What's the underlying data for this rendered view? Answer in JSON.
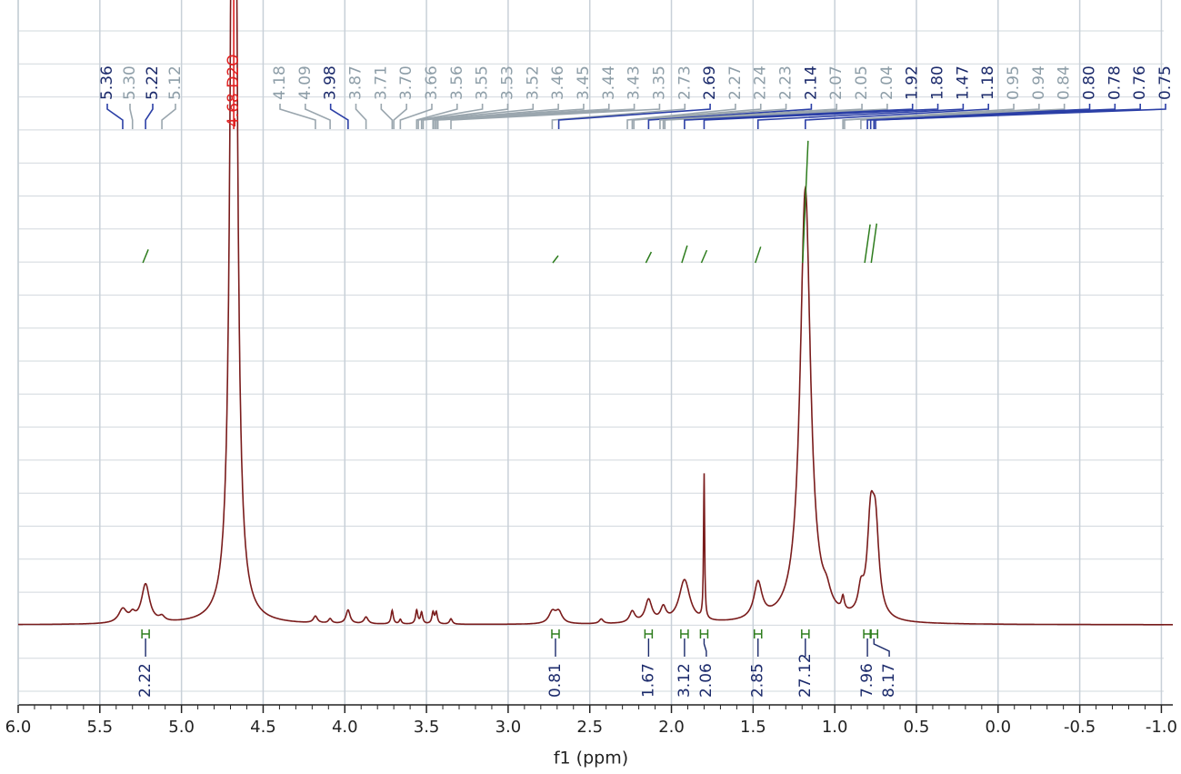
{
  "chart_data": {
    "type": "nmr",
    "x_label": "f1 (ppm)",
    "xlim": [
      6.0,
      -1.07
    ],
    "xticks": [
      {
        "value": 6,
        "label": "6.0"
      },
      {
        "value": 5.5,
        "label": "5.5"
      },
      {
        "value": 5,
        "label": "5.0"
      },
      {
        "value": 4.5,
        "label": "4.5"
      },
      {
        "value": 4,
        "label": "4.0"
      },
      {
        "value": 3.5,
        "label": "3.5"
      },
      {
        "value": 3,
        "label": "3.0"
      },
      {
        "value": 2.5,
        "label": "2.5"
      },
      {
        "value": 2,
        "label": "2.0"
      },
      {
        "value": 1.5,
        "label": "1.5"
      },
      {
        "value": 1,
        "label": "1.0"
      },
      {
        "value": 0.5,
        "label": "0.5"
      },
      {
        "value": 0,
        "label": "0.0"
      },
      {
        "value": -0.5,
        "label": "-0.5"
      },
      {
        "value": -1,
        "label": "-1.0"
      }
    ],
    "ylim": [
      0,
      137
    ],
    "grid": true,
    "spectrum_color": "#7a1c1c",
    "integral_color": "#2e7d1e",
    "peaks": [
      {
        "ppm": 5.36,
        "height": 3,
        "width": 0.03
      },
      {
        "ppm": 5.3,
        "height": 1.5,
        "width": 0.02
      },
      {
        "ppm": 5.22,
        "height": 8.5,
        "width": 0.03
      },
      {
        "ppm": 5.12,
        "height": 1,
        "width": 0.02
      },
      {
        "ppm": 4.68,
        "height": 300,
        "width": 0.018
      },
      {
        "ppm": 4.18,
        "height": 1.5,
        "width": 0.015
      },
      {
        "ppm": 4.09,
        "height": 1,
        "width": 0.012
      },
      {
        "ppm": 3.98,
        "height": 3,
        "width": 0.015
      },
      {
        "ppm": 3.87,
        "height": 1.5,
        "width": 0.015
      },
      {
        "ppm": 3.71,
        "height": 3,
        "width": 0.008
      },
      {
        "ppm": 3.66,
        "height": 1,
        "width": 0.008
      },
      {
        "ppm": 3.56,
        "height": 3,
        "width": 0.008
      },
      {
        "ppm": 3.53,
        "height": 2.5,
        "width": 0.008
      },
      {
        "ppm": 3.46,
        "height": 2.5,
        "width": 0.008
      },
      {
        "ppm": 3.44,
        "height": 2.5,
        "width": 0.008
      },
      {
        "ppm": 3.35,
        "height": 1.2,
        "width": 0.01
      },
      {
        "ppm": 2.73,
        "height": 2.5,
        "width": 0.025
      },
      {
        "ppm": 2.69,
        "height": 2.5,
        "width": 0.025
      },
      {
        "ppm": 2.43,
        "height": 1,
        "width": 0.015
      },
      {
        "ppm": 2.24,
        "height": 2.5,
        "width": 0.02
      },
      {
        "ppm": 2.14,
        "height": 5,
        "width": 0.025
      },
      {
        "ppm": 2.05,
        "height": 3,
        "width": 0.02
      },
      {
        "ppm": 1.92,
        "height": 9.5,
        "width": 0.04
      },
      {
        "ppm": 1.8,
        "height": 32,
        "width": 0.004
      },
      {
        "ppm": 1.47,
        "height": 8,
        "width": 0.03
      },
      {
        "ppm": 1.18,
        "height": 96,
        "width": 0.038
      },
      {
        "ppm": 1.05,
        "height": 3,
        "width": 0.03
      },
      {
        "ppm": 0.95,
        "height": 3,
        "width": 0.01
      },
      {
        "ppm": 0.84,
        "height": 5,
        "width": 0.02
      },
      {
        "ppm": 0.78,
        "height": 20,
        "width": 0.025
      },
      {
        "ppm": 0.75,
        "height": 18,
        "width": 0.025
      }
    ],
    "solvent_label": {
      "value": 4.68,
      "label": "4.68 D2O",
      "color": "#e02020"
    },
    "peak_labels": [
      {
        "value": 5.36,
        "label": "5.36",
        "color": "#1b2a6b"
      },
      {
        "value": 5.3,
        "label": "5.30",
        "color": "#8e9ea8"
      },
      {
        "value": 5.22,
        "label": "5.22",
        "color": "#1b2a6b"
      },
      {
        "value": 5.12,
        "label": "5.12",
        "color": "#8e9ea8"
      },
      {
        "value": 4.18,
        "label": "4.18",
        "color": "#8e9ea8"
      },
      {
        "value": 4.09,
        "label": "4.09",
        "color": "#8e9ea8"
      },
      {
        "value": 3.98,
        "label": "3.98",
        "color": "#1b2a6b"
      },
      {
        "value": 3.87,
        "label": "3.87",
        "color": "#8e9ea8"
      },
      {
        "value": 3.71,
        "label": "3.71",
        "color": "#8e9ea8"
      },
      {
        "value": 3.7,
        "label": "3.70",
        "color": "#8e9ea8"
      },
      {
        "value": 3.66,
        "label": "3.66",
        "color": "#8e9ea8"
      },
      {
        "value": 3.56,
        "label": "3.56",
        "color": "#8e9ea8"
      },
      {
        "value": 3.55,
        "label": "3.55",
        "color": "#8e9ea8"
      },
      {
        "value": 3.53,
        "label": "3.53",
        "color": "#8e9ea8"
      },
      {
        "value": 3.52,
        "label": "3.52",
        "color": "#8e9ea8"
      },
      {
        "value": 3.46,
        "label": "3.46",
        "color": "#8e9ea8"
      },
      {
        "value": 3.45,
        "label": "3.45",
        "color": "#8e9ea8"
      },
      {
        "value": 3.44,
        "label": "3.44",
        "color": "#8e9ea8"
      },
      {
        "value": 3.43,
        "label": "3.43",
        "color": "#8e9ea8"
      },
      {
        "value": 3.35,
        "label": "3.35",
        "color": "#8e9ea8"
      },
      {
        "value": 2.73,
        "label": "2.73",
        "color": "#8e9ea8"
      },
      {
        "value": 2.69,
        "label": "2.69",
        "color": "#1b2a6b"
      },
      {
        "value": 2.27,
        "label": "2.27",
        "color": "#8e9ea8"
      },
      {
        "value": 2.24,
        "label": "2.24",
        "color": "#8e9ea8"
      },
      {
        "value": 2.23,
        "label": "2.23",
        "color": "#8e9ea8"
      },
      {
        "value": 2.14,
        "label": "2.14",
        "color": "#1b2a6b"
      },
      {
        "value": 2.07,
        "label": "2.07",
        "color": "#8e9ea8"
      },
      {
        "value": 2.05,
        "label": "2.05",
        "color": "#8e9ea8"
      },
      {
        "value": 2.04,
        "label": "2.04",
        "color": "#8e9ea8"
      },
      {
        "value": 1.92,
        "label": "1.92",
        "color": "#1b2a6b"
      },
      {
        "value": 1.8,
        "label": "1.80",
        "color": "#1b2a6b"
      },
      {
        "value": 1.47,
        "label": "1.47",
        "color": "#1b2a6b"
      },
      {
        "value": 1.18,
        "label": "1.18",
        "color": "#1b2a6b"
      },
      {
        "value": 0.95,
        "label": "0.95",
        "color": "#8e9ea8"
      },
      {
        "value": 0.94,
        "label": "0.94",
        "color": "#8e9ea8"
      },
      {
        "value": 0.84,
        "label": "0.84",
        "color": "#8e9ea8"
      },
      {
        "value": 0.8,
        "label": "0.80",
        "color": "#1b2a6b"
      },
      {
        "value": 0.78,
        "label": "0.78",
        "color": "#1b2a6b"
      },
      {
        "value": 0.76,
        "label": "0.76",
        "color": "#1b2a6b"
      },
      {
        "value": 0.75,
        "label": "0.75",
        "color": "#1b2a6b"
      }
    ],
    "integrals": [
      {
        "ppm": 5.22,
        "value": 2.22
      },
      {
        "ppm": 2.71,
        "value": 0.81
      },
      {
        "ppm": 2.14,
        "value": 1.67
      },
      {
        "ppm": 1.92,
        "value": 3.12
      },
      {
        "ppm": 1.8,
        "value": 2.06
      },
      {
        "ppm": 1.47,
        "value": 2.85
      },
      {
        "ppm": 1.18,
        "value": 27.12
      },
      {
        "ppm": 0.8,
        "value": 7.96
      },
      {
        "ppm": 0.76,
        "value": 8.17
      }
    ]
  }
}
